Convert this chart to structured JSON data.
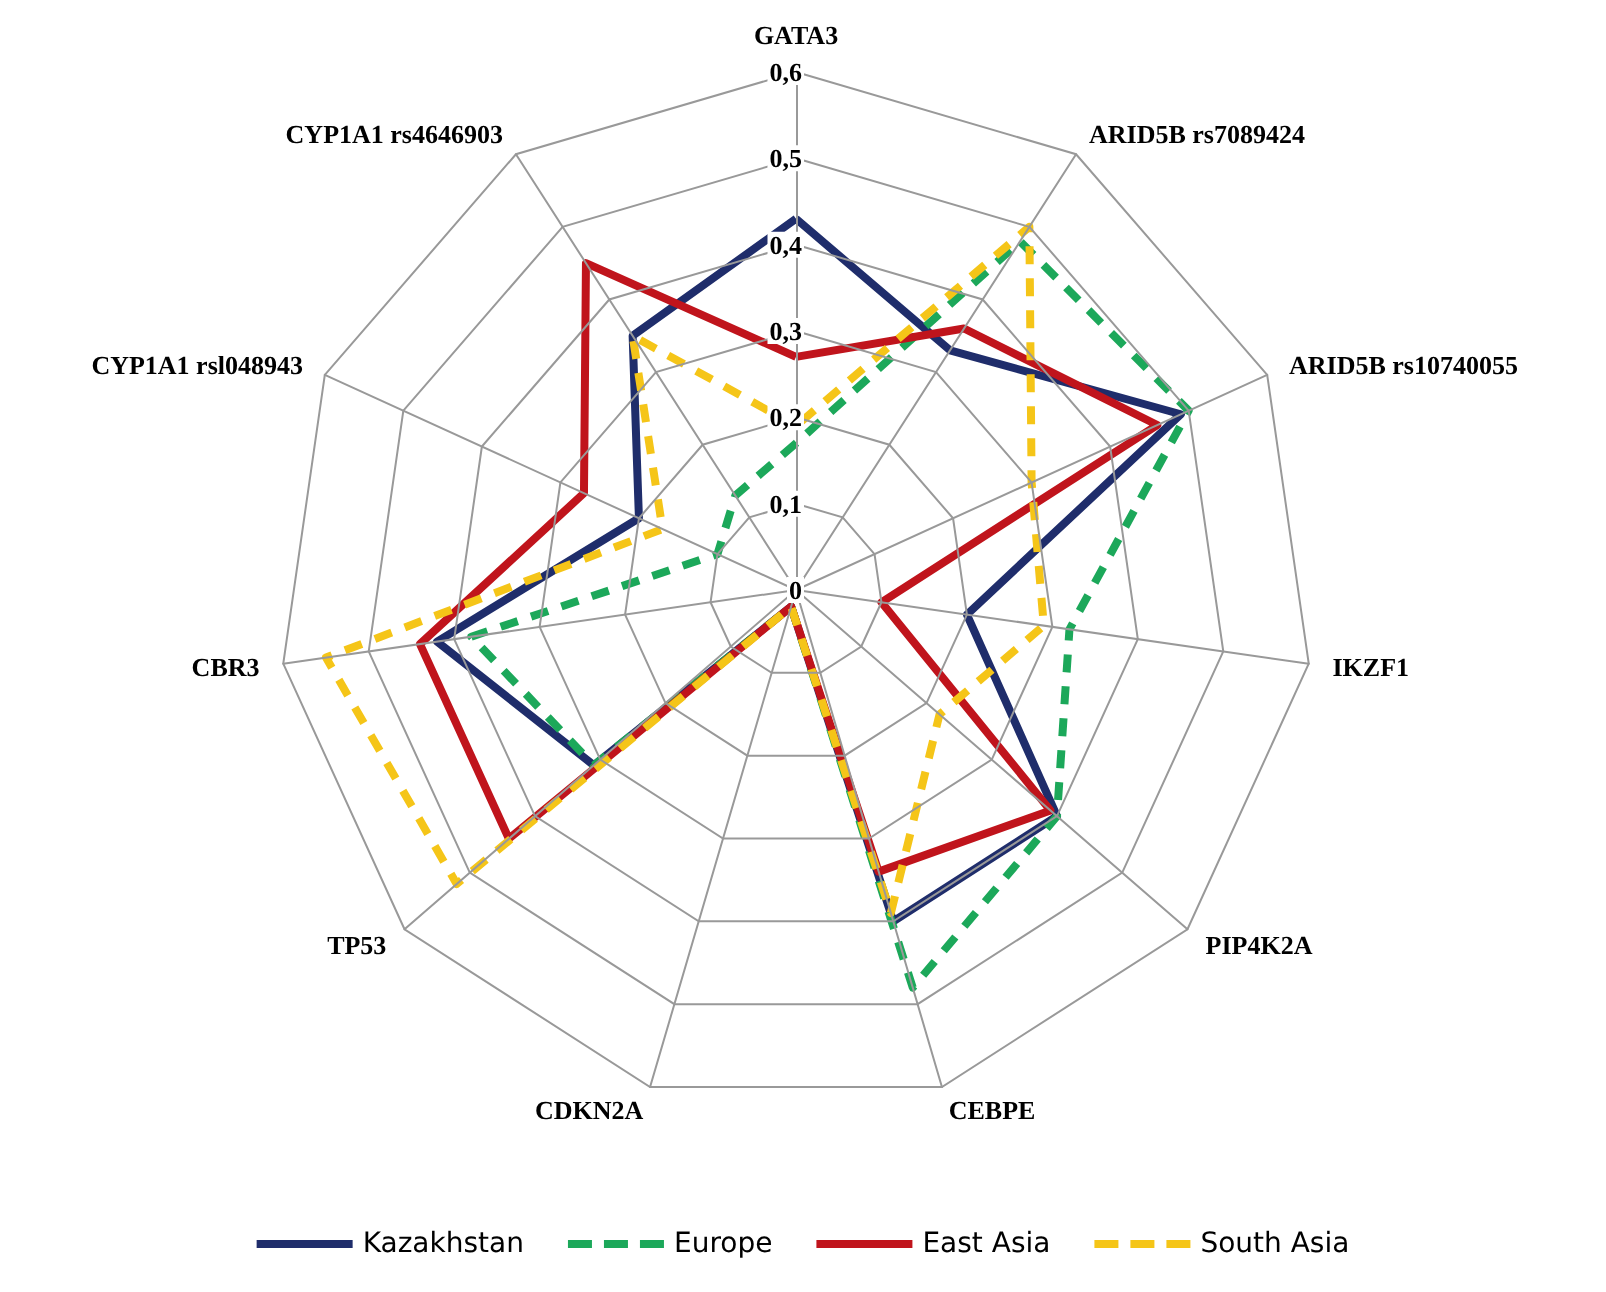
{
  "chart_data": {
    "type": "radar",
    "categories": [
      "GATA3",
      "ARID5B rs7089424",
      "ARID5B rs10740055",
      "IKZF1",
      "PIP4K2A",
      "CEBPE",
      "CDKN2A",
      "TP53",
      "CBR3",
      "CYP1A1 rsl048943",
      "CYP1A1 rs4646903"
    ],
    "ylim": [
      0,
      0.6
    ],
    "yticks": [
      {
        "value": 0,
        "label": "0"
      },
      {
        "value": 0.1,
        "label": "0,1"
      },
      {
        "value": 0.2,
        "label": "0,2"
      },
      {
        "value": 0.3,
        "label": "0,3"
      },
      {
        "value": 0.4,
        "label": "0,4"
      },
      {
        "value": 0.5,
        "label": "0,5"
      },
      {
        "value": 0.6,
        "label": "0,6"
      }
    ],
    "grid": true,
    "legend": "bottom",
    "marker": "none",
    "series": [
      {
        "name": "Kazakhstan",
        "color": "#1f2d6b",
        "line_style": "solid",
        "values": [
          0.43,
          0.33,
          0.49,
          0.2,
          0.4,
          0.4,
          0.02,
          0.31,
          0.42,
          0.2,
          0.35
        ]
      },
      {
        "name": "Europe",
        "color": "#1ca85a",
        "line_style": "dashed",
        "values": [
          0.17,
          0.48,
          0.5,
          0.32,
          0.4,
          0.48,
          0.02,
          0.31,
          0.38,
          0.1,
          0.13
        ]
      },
      {
        "name": "East Asia",
        "color": "#c0141c",
        "line_style": "solid",
        "values": [
          0.27,
          0.36,
          0.46,
          0.1,
          0.39,
          0.34,
          0.02,
          0.44,
          0.44,
          0.27,
          0.45
        ]
      },
      {
        "name": "South Asia",
        "color": "#f5c518",
        "line_style": "dashed",
        "values": [
          0.19,
          0.5,
          0.3,
          0.29,
          0.22,
          0.39,
          0.02,
          0.52,
          0.55,
          0.17,
          0.35
        ]
      }
    ]
  }
}
